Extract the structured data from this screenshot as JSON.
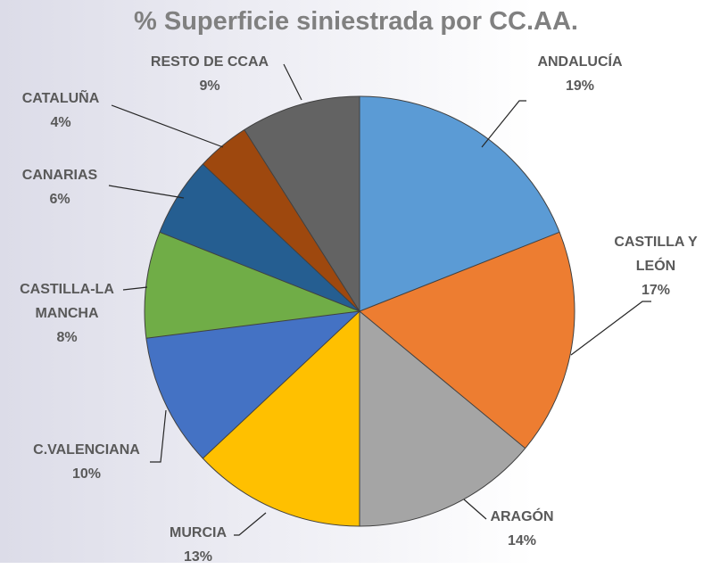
{
  "chart_data": {
    "type": "pie",
    "title": "% Superficie siniestrada por CC.AA.",
    "categories": [
      "ANDALUCÍA",
      "CASTILLA Y LEÓN",
      "ARAGÓN",
      "MURCIA",
      "C.VALENCIANA",
      "CASTILLA-LA MANCHA",
      "CANARIAS",
      "CATALUÑA",
      "RESTO DE CCAA"
    ],
    "values": [
      19,
      17,
      14,
      13,
      10,
      8,
      6,
      4,
      9
    ],
    "value_labels": [
      "19%",
      "17%",
      "14%",
      "13%",
      "10%",
      "8%",
      "6%",
      "4%",
      "9%"
    ],
    "colors": [
      "#5b9bd5",
      "#ed7d31",
      "#a5a5a5",
      "#ffc000",
      "#4472c4",
      "#70ad47",
      "#255e91",
      "#9e480e",
      "#636363"
    ]
  }
}
